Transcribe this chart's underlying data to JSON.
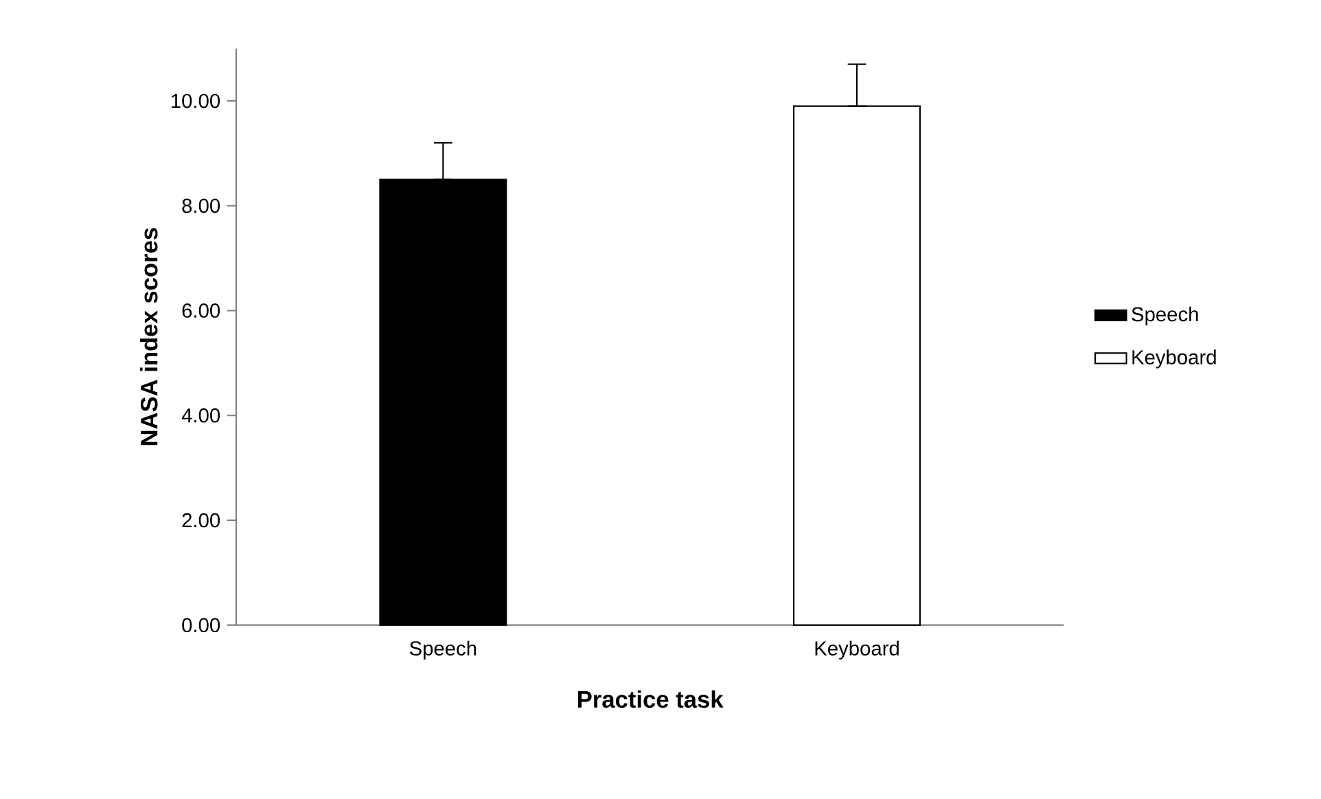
{
  "chart_data": {
    "type": "bar",
    "xlabel": "Practice task",
    "ylabel": "NASA index scores",
    "categories": [
      "Speech",
      "Keyboard"
    ],
    "series": [
      {
        "name": "Speech",
        "color": "#000000",
        "values": [
          8.5,
          null
        ],
        "errors": [
          [
            8.5,
            9.2
          ],
          null
        ]
      },
      {
        "name": "Keyboard",
        "color": "#ffffff",
        "values": [
          null,
          9.9
        ],
        "errors": [
          null,
          [
            9.9,
            10.7
          ]
        ]
      }
    ],
    "ylim": [
      0,
      11
    ],
    "yticks": [
      {
        "value": 0,
        "label": "0.00"
      },
      {
        "value": 2,
        "label": "2.00"
      },
      {
        "value": 4,
        "label": "4.00"
      },
      {
        "value": 6,
        "label": "6.00"
      },
      {
        "value": 8,
        "label": "8.00"
      },
      {
        "value": 10,
        "label": "10.00"
      }
    ],
    "grid": false,
    "legend": "right"
  }
}
